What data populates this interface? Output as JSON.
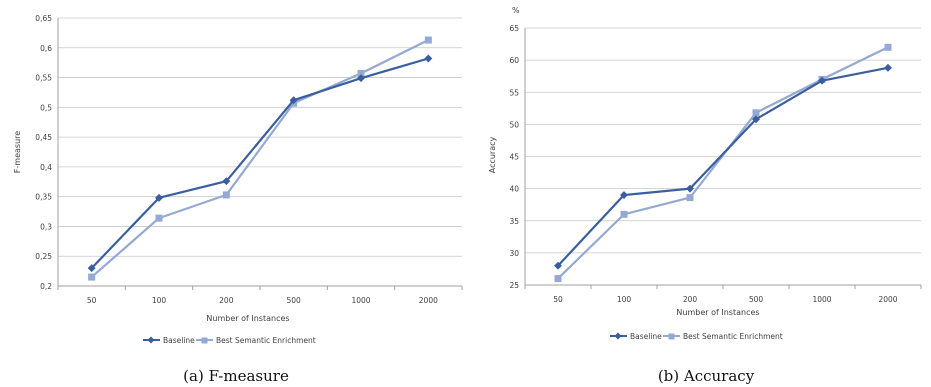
{
  "chart_data": [
    {
      "type": "line",
      "categories": [
        "50",
        "100",
        "200",
        "500",
        "1000",
        "2000"
      ],
      "series": [
        {
          "name": "Baseline",
          "values": [
            0.23,
            0.348,
            0.376,
            0.512,
            0.549,
            0.582
          ],
          "color": "#3b5f9e",
          "marker": "diamond"
        },
        {
          "name": "Best Semantic Enrichment",
          "values": [
            0.215,
            0.314,
            0.353,
            0.507,
            0.557,
            0.613
          ],
          "color": "#94a9d4",
          "marker": "square"
        }
      ],
      "title": "",
      "xlabel": "Number of Instances",
      "ylabel": "F-measure",
      "ylim": [
        0.2,
        0.65
      ],
      "yticks": [
        "0,2",
        "0,25",
        "0,3",
        "0,35",
        "0,4",
        "0,45",
        "0,5",
        "0,55",
        "0,6",
        "0,65"
      ],
      "grid": true,
      "legend_position": "bottom",
      "caption": "(a) F-measure"
    },
    {
      "type": "line",
      "categories": [
        "50",
        "100",
        "200",
        "500",
        "1000",
        "2000"
      ],
      "series": [
        {
          "name": "Baseline",
          "values": [
            28,
            39,
            40,
            50.8,
            56.8,
            58.8
          ],
          "color": "#3b5f9e",
          "marker": "diamond"
        },
        {
          "name": "Best Semantic Enrichment",
          "values": [
            26,
            36,
            38.6,
            51.8,
            57,
            62
          ],
          "color": "#94a9d4",
          "marker": "square"
        }
      ],
      "title": "",
      "unit_label": "%",
      "xlabel": "Number of Instances",
      "ylabel": "Accuracy",
      "ylim": [
        25,
        65
      ],
      "yticks": [
        "25",
        "30",
        "35",
        "40",
        "45",
        "50",
        "55",
        "60",
        "65"
      ],
      "grid": true,
      "legend_position": "bottom",
      "caption": "(b) Accuracy"
    }
  ]
}
